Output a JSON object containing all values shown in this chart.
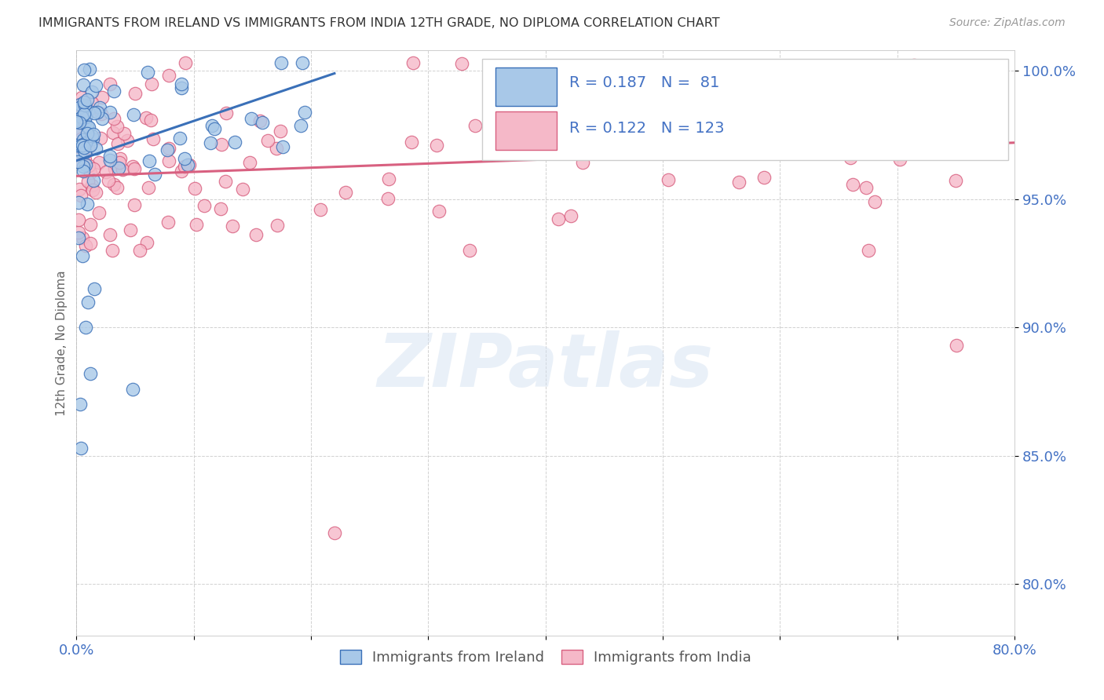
{
  "title": "IMMIGRANTS FROM IRELAND VS IMMIGRANTS FROM INDIA 12TH GRADE, NO DIPLOMA CORRELATION CHART",
  "source": "Source: ZipAtlas.com",
  "ylabel": "12th Grade, No Diploma",
  "legend_ireland": "Immigrants from Ireland",
  "legend_india": "Immigrants from India",
  "R_ireland": 0.187,
  "N_ireland": 81,
  "R_india": 0.122,
  "N_india": 123,
  "color_ireland_fill": "#a8c8e8",
  "color_ireland_edge": "#3a70b8",
  "color_india_fill": "#f5b8c8",
  "color_india_edge": "#d86080",
  "color_ireland_line": "#3a70b8",
  "color_india_line": "#d86080",
  "color_text_blue": "#4472c4",
  "background_color": "#ffffff",
  "watermark_text": "ZIPatlas",
  "xmin": 0.0,
  "xmax": 0.8,
  "ymin": 0.78,
  "ymax": 1.008,
  "yticks": [
    0.8,
    0.85,
    0.9,
    0.95,
    1.0
  ],
  "ytick_labels": [
    "80.0%",
    "85.0%",
    "90.0%",
    "95.0%",
    "100.0%"
  ],
  "xticks": [
    0.0,
    0.1,
    0.2,
    0.3,
    0.4,
    0.5,
    0.6,
    0.7,
    0.8
  ],
  "xtick_labels": [
    "0.0%",
    "",
    "",
    "",
    "",
    "",
    "",
    "",
    "80.0%"
  ],
  "ireland_trend_x0": 0.0,
  "ireland_trend_y0": 0.965,
  "ireland_trend_x1": 0.22,
  "ireland_trend_y1": 0.999,
  "india_trend_x0": 0.0,
  "india_trend_y0": 0.959,
  "india_trend_x1": 0.8,
  "india_trend_y1": 0.972
}
